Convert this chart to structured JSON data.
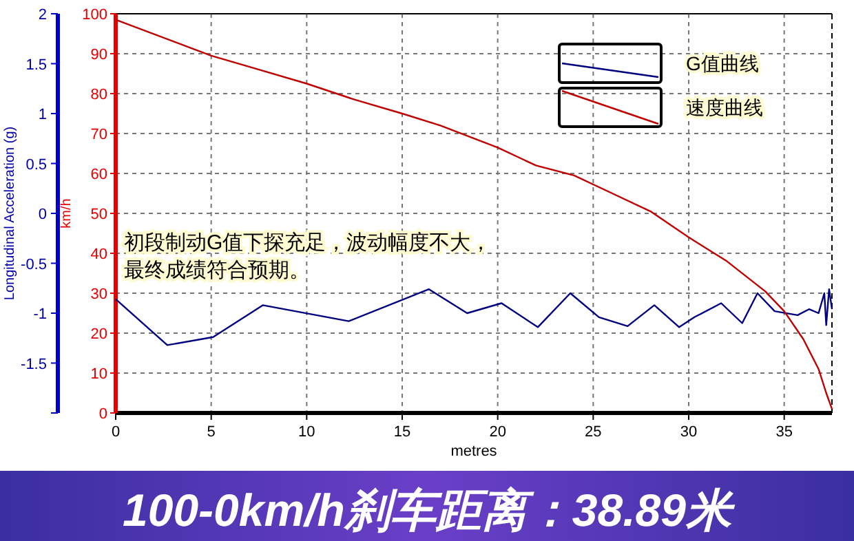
{
  "chart_data": {
    "type": "line",
    "xlabel": "metres",
    "ylabel": "km/h",
    "y2label": "Longitudinal Acceleration (g)",
    "xlim": [
      0,
      37.5
    ],
    "xticks": [
      0,
      5,
      10,
      15,
      20,
      25,
      30,
      35
    ],
    "ylim": [
      0,
      100
    ],
    "yticks": [
      0,
      10,
      20,
      30,
      40,
      50,
      60,
      70,
      80,
      90,
      100
    ],
    "y2lim": [
      -2,
      2
    ],
    "y2ticks": [
      {
        "value": -2,
        "label": null
      },
      -1.5,
      -1,
      -0.5,
      0,
      0.5,
      1,
      1.5,
      2
    ],
    "grid": true,
    "line_style": "solid",
    "legend": "top right",
    "series": [
      {
        "name": "G值曲线",
        "color": "#000080",
        "axis": "y2",
        "x": [
          0,
          2.7,
          5.1,
          7.7,
          12.2,
          16.4,
          18.4,
          20.2,
          22.1,
          23.8,
          25.3,
          26.8,
          28.2,
          29.5,
          30.3,
          31.7,
          32.8,
          33.6,
          34.5,
          35.7,
          36.3,
          36.8,
          37.1,
          37.2,
          37.35,
          37.5
        ],
        "values": [
          -0.86,
          -1.32,
          -1.24,
          -0.92,
          -1.08,
          -0.76,
          -1.0,
          -0.9,
          -1.14,
          -0.8,
          -1.04,
          -1.13,
          -0.92,
          -1.14,
          -1.04,
          -0.9,
          -1.1,
          -0.8,
          -0.98,
          -1.02,
          -0.96,
          -1.0,
          -0.8,
          -1.12,
          -0.76,
          -0.96
        ]
      },
      {
        "name": "速度曲线",
        "color": "#c00000",
        "x": [
          0,
          5,
          7.5,
          10,
          12.5,
          15,
          17,
          20,
          22,
          24,
          26,
          28,
          30,
          32,
          34,
          35,
          36,
          36.8,
          37.2,
          37.5
        ],
        "values": [
          98.5,
          89.5,
          86,
          82.5,
          78.5,
          75,
          72,
          66.5,
          62,
          59.5,
          55,
          50.5,
          44,
          38,
          30.5,
          25.5,
          18.5,
          11,
          5,
          1
        ]
      }
    ],
    "annotations": [
      "初段制动G值下探充足，波动幅度不大，最终成绩符合预期。",
      "100-0km/h刹车距离：38.89米"
    ]
  }
}
